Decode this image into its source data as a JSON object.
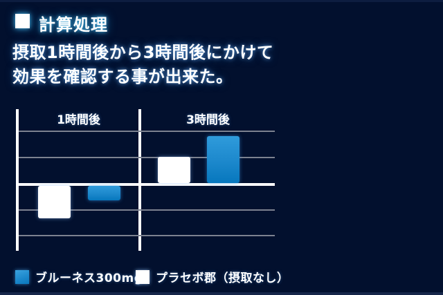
{
  "page": {
    "title": "計算処理",
    "description_line1": "摂取1時間後から3時間後にかけて",
    "description_line2": "効果を確認する事が出来た。"
  },
  "chart_data": {
    "type": "bar",
    "title": "",
    "group_labels": [
      "1時間後",
      "3時間後"
    ],
    "series": [
      {
        "name": "プラセボ郡（摂取なし）",
        "color": "#ffffff",
        "values": [
          -1.25,
          1.0
        ]
      },
      {
        "name": "ブルーネス300mg",
        "color": "#1e8fd0",
        "color_top": "#2f9bdb",
        "color_bottom": "#0677bd",
        "values": [
          -0.55,
          1.8
        ]
      }
    ],
    "ylim": [
      -2.5,
      2.5
    ],
    "gridline_step": 1,
    "axis_numeric_labels": false,
    "baseline": 0,
    "grid": true,
    "legend_position": "bottom-left"
  },
  "legend": {
    "items": [
      {
        "label": "ブルーネス300mg",
        "swatch": "blue-gradient"
      },
      {
        "label": "プラセボ郡（摂取なし）",
        "swatch": "white"
      }
    ]
  },
  "colors": {
    "background": "#02102e",
    "gridline": "#7d8290",
    "axis": "#ffffff",
    "bar_white": "#ffffff",
    "bar_blue_top": "#2f9bdb",
    "bar_blue_bottom": "#0677bd",
    "text": "#ffffff",
    "text_glow": "#46bef0"
  }
}
